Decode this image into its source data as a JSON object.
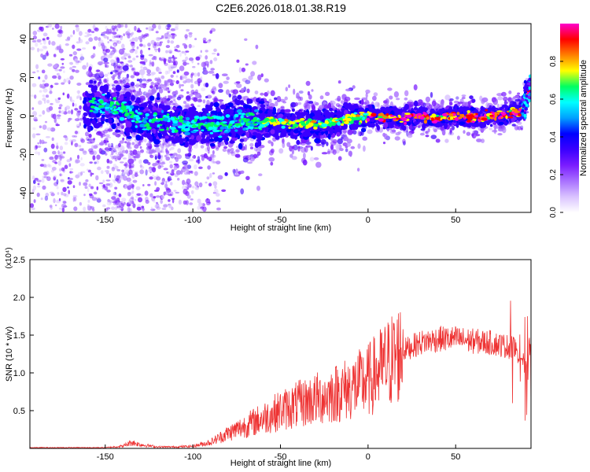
{
  "title": "C2E6.2026.018.01.38.R19",
  "colors": {
    "snr_line": "#ee3333",
    "axis": "#000000",
    "spectrogram_ramp": [
      "#ffffff",
      "#d9c2ff",
      "#a870ff",
      "#7a1cff",
      "#3a00ff",
      "#0000ff",
      "#00a0ff",
      "#00ffff",
      "#00ff60",
      "#ffff00",
      "#ff8000",
      "#ff0000",
      "#ff00cc"
    ]
  },
  "chart_data": [
    {
      "type": "heatmap",
      "title": "C2E6.2026.018.01.38.R19",
      "xlabel": "Height of straight line (km)",
      "ylabel": "Frequency (Hz)",
      "xlim": [
        -193,
        93
      ],
      "ylim": [
        -50,
        48
      ],
      "x_ticks": [
        -150,
        -100,
        -50,
        0,
        50
      ],
      "y_ticks": [
        40,
        20,
        0,
        -20,
        -40
      ],
      "colorbar": {
        "label": "Normalized spectral amplitude",
        "range": [
          0,
          1
        ],
        "ticks": [
          0.0,
          0.2,
          0.4,
          0.6,
          0.8
        ]
      },
      "ridge": {
        "x": [
          -160,
          -150,
          -140,
          -130,
          -120,
          -110,
          -100,
          -90,
          -80,
          -70,
          -60,
          -50,
          -40,
          -30,
          -20,
          -10,
          0,
          10,
          20,
          30,
          40,
          50,
          60,
          70,
          80,
          88,
          92
        ],
        "y": [
          5,
          6,
          3,
          -3,
          -2,
          -4,
          -4,
          -5,
          -4,
          -2,
          -3,
          -3,
          -4,
          -5,
          -3,
          -1,
          0,
          0,
          -1,
          0,
          -1,
          0,
          -1,
          0,
          1,
          3,
          14
        ]
      }
    },
    {
      "type": "line",
      "xlabel": "Height of straight line (km)",
      "ylabel": "SNR (10 * v/v)",
      "y_multiplier": "(x10⁴)",
      "xlim": [
        -193,
        93
      ],
      "ylim": [
        0,
        2.5
      ],
      "x_ticks": [
        -150,
        -100,
        -50,
        0,
        50
      ],
      "y_ticks": [
        0.5,
        1.0,
        1.5,
        2.0,
        2.5
      ],
      "series": [
        {
          "x": [
            -193,
            -150,
            -140,
            -135,
            -130,
            -120,
            -110,
            -100,
            -90,
            -80,
            -70,
            -60,
            -50,
            -40,
            -30,
            -20,
            -10,
            0,
            10,
            20,
            30,
            40,
            50,
            60,
            70,
            80,
            85,
            88,
            90,
            92
          ],
          "y": [
            0.01,
            0.01,
            0.03,
            0.08,
            0.05,
            0.02,
            0.02,
            0.03,
            0.08,
            0.2,
            0.3,
            0.4,
            0.5,
            0.58,
            0.65,
            0.72,
            0.8,
            0.9,
            1.1,
            1.3,
            1.4,
            1.45,
            1.45,
            1.42,
            1.4,
            1.35,
            1.3,
            1.2,
            1.0,
            1.4
          ]
        }
      ]
    }
  ]
}
